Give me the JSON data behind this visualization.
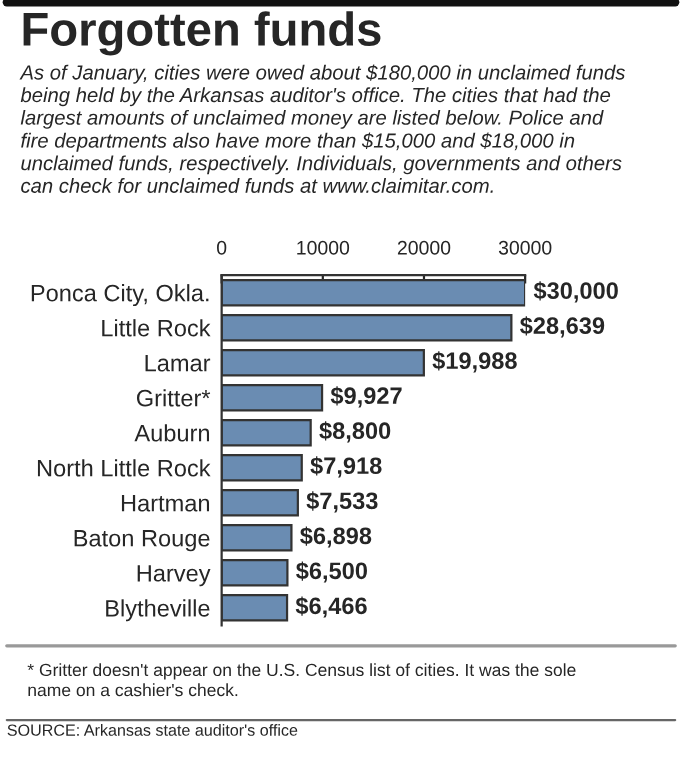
{
  "chart_data": {
    "type": "bar",
    "orientation": "horizontal",
    "title": "Forgotten funds",
    "subtitle": "As of January, cities were owed about $180,000 in unclaimed funds\nbeing held by the Arkansas auditor's office. The cities that had the\nlargest amounts of unclaimed money are listed below. Police and\nfire departments also have more than $15,000 and $18,000 in\nunclaimed funds, respectively. Individuals, governments and others\ncan check for unclaimed funds at www.claimitar.com.",
    "categories": [
      "Ponca City, Okla.",
      "Little Rock",
      "Lamar",
      "Gritter*",
      "Auburn",
      "North Little Rock",
      "Hartman",
      "Baton Rouge",
      "Harvey",
      "Blytheville"
    ],
    "values": [
      30000,
      28639,
      19988,
      9927,
      8800,
      7918,
      7533,
      6898,
      6500,
      6466
    ],
    "value_labels": [
      "$30,000",
      "$28,639",
      "$19,988",
      "$9,927",
      "$8,800",
      "$7,918",
      "$7,533",
      "$6,898",
      "$6,500",
      "$6,466"
    ],
    "color": "#6a8cb2",
    "xlim": [
      0,
      30000
    ],
    "xticks": [
      0,
      10000,
      20000,
      30000
    ],
    "grid": false,
    "annotations": [
      "* Gritter doesn't appear on the U.S. Census list of cities. It was the sole\nname on a cashier's check.",
      "SOURCE: Arkansas state auditor's office"
    ]
  }
}
